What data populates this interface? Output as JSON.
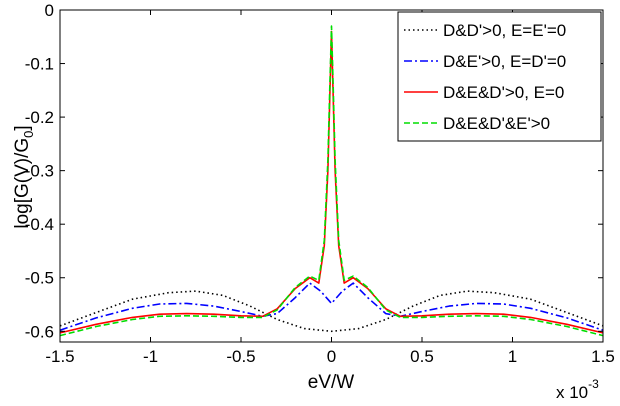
{
  "chart_data": {
    "type": "line",
    "title": "",
    "xlabel": "eV/W",
    "ylabel": "log[G(V)/G0]",
    "ylabel_main": "log[G(V)/G",
    "ylabel_sub": "0",
    "ylabel_end": "]",
    "x_multiplier": {
      "base": "x 10",
      "exponent": "-3"
    },
    "xlim": [
      -1.5,
      1.5
    ],
    "ylim": [
      -0.62,
      0
    ],
    "xticks": [
      -1.5,
      -1,
      -0.5,
      0,
      0.5,
      1,
      1.5
    ],
    "xtick_labels": [
      "-1.5",
      "-1",
      "-0.5",
      "0",
      "0.5",
      "1",
      "1.5"
    ],
    "yticks": [
      0,
      -0.1,
      -0.2,
      -0.3,
      -0.4,
      -0.5,
      -0.6
    ],
    "ytick_labels": [
      "0",
      "-0.1",
      "-0.2",
      "-0.3",
      "-0.4",
      "-0.5",
      "-0.6"
    ],
    "grid": false,
    "legend_position": "top-right",
    "series": [
      {
        "name": "D&D'>0, E=E'=0",
        "color": "#000000",
        "style": "dotted",
        "x": [
          -1.5,
          -1.3,
          -1.1,
          -0.9,
          -0.75,
          -0.6,
          -0.45,
          -0.3,
          -0.15,
          0,
          0.15,
          0.3,
          0.45,
          0.6,
          0.75,
          0.9,
          1.1,
          1.3,
          1.5
        ],
        "y": [
          -0.59,
          -0.565,
          -0.54,
          -0.528,
          -0.525,
          -0.533,
          -0.553,
          -0.578,
          -0.595,
          -0.6,
          -0.595,
          -0.578,
          -0.553,
          -0.533,
          -0.525,
          -0.528,
          -0.54,
          -0.565,
          -0.59
        ]
      },
      {
        "name": "D&E'>0, E=D'=0",
        "color": "#0000ff",
        "style": "dashdot",
        "x": [
          -1.5,
          -1.3,
          -1.1,
          -0.95,
          -0.8,
          -0.65,
          -0.5,
          -0.38,
          -0.3,
          -0.2,
          -0.12,
          -0.06,
          0,
          0.06,
          0.12,
          0.2,
          0.3,
          0.38,
          0.5,
          0.65,
          0.8,
          0.95,
          1.1,
          1.3,
          1.5
        ],
        "y": [
          -0.598,
          -0.575,
          -0.557,
          -0.549,
          -0.548,
          -0.553,
          -0.563,
          -0.572,
          -0.567,
          -0.537,
          -0.51,
          -0.525,
          -0.548,
          -0.525,
          -0.51,
          -0.537,
          -0.567,
          -0.572,
          -0.563,
          -0.553,
          -0.548,
          -0.549,
          -0.557,
          -0.575,
          -0.598
        ]
      },
      {
        "name": "D&E&D'>0, E=0",
        "color": "#ff0000",
        "style": "solid",
        "x": [
          -1.5,
          -1.3,
          -1.1,
          -0.95,
          -0.8,
          -0.65,
          -0.5,
          -0.38,
          -0.3,
          -0.2,
          -0.12,
          -0.07,
          -0.04,
          -0.02,
          -0.01,
          0,
          0.01,
          0.02,
          0.04,
          0.07,
          0.12,
          0.2,
          0.3,
          0.38,
          0.5,
          0.65,
          0.8,
          0.95,
          1.1,
          1.3,
          1.5
        ],
        "y": [
          -0.603,
          -0.587,
          -0.574,
          -0.568,
          -0.567,
          -0.568,
          -0.571,
          -0.572,
          -0.558,
          -0.52,
          -0.5,
          -0.51,
          -0.44,
          -0.3,
          -0.17,
          -0.04,
          -0.17,
          -0.3,
          -0.44,
          -0.51,
          -0.5,
          -0.52,
          -0.558,
          -0.572,
          -0.571,
          -0.568,
          -0.567,
          -0.568,
          -0.574,
          -0.587,
          -0.603
        ]
      },
      {
        "name": "D&E&D'&E'>0",
        "color": "#00dd00",
        "style": "dashed",
        "x": [
          -1.5,
          -1.3,
          -1.1,
          -0.95,
          -0.8,
          -0.65,
          -0.5,
          -0.38,
          -0.3,
          -0.2,
          -0.12,
          -0.07,
          -0.04,
          -0.02,
          -0.01,
          0,
          0.01,
          0.02,
          0.04,
          0.07,
          0.12,
          0.2,
          0.3,
          0.38,
          0.5,
          0.65,
          0.8,
          0.95,
          1.1,
          1.3,
          1.5
        ],
        "y": [
          -0.608,
          -0.591,
          -0.578,
          -0.572,
          -0.571,
          -0.572,
          -0.574,
          -0.574,
          -0.56,
          -0.518,
          -0.497,
          -0.505,
          -0.43,
          -0.28,
          -0.15,
          -0.03,
          -0.15,
          -0.28,
          -0.43,
          -0.505,
          -0.497,
          -0.518,
          -0.56,
          -0.574,
          -0.574,
          -0.572,
          -0.571,
          -0.572,
          -0.578,
          -0.591,
          -0.608
        ]
      }
    ]
  }
}
